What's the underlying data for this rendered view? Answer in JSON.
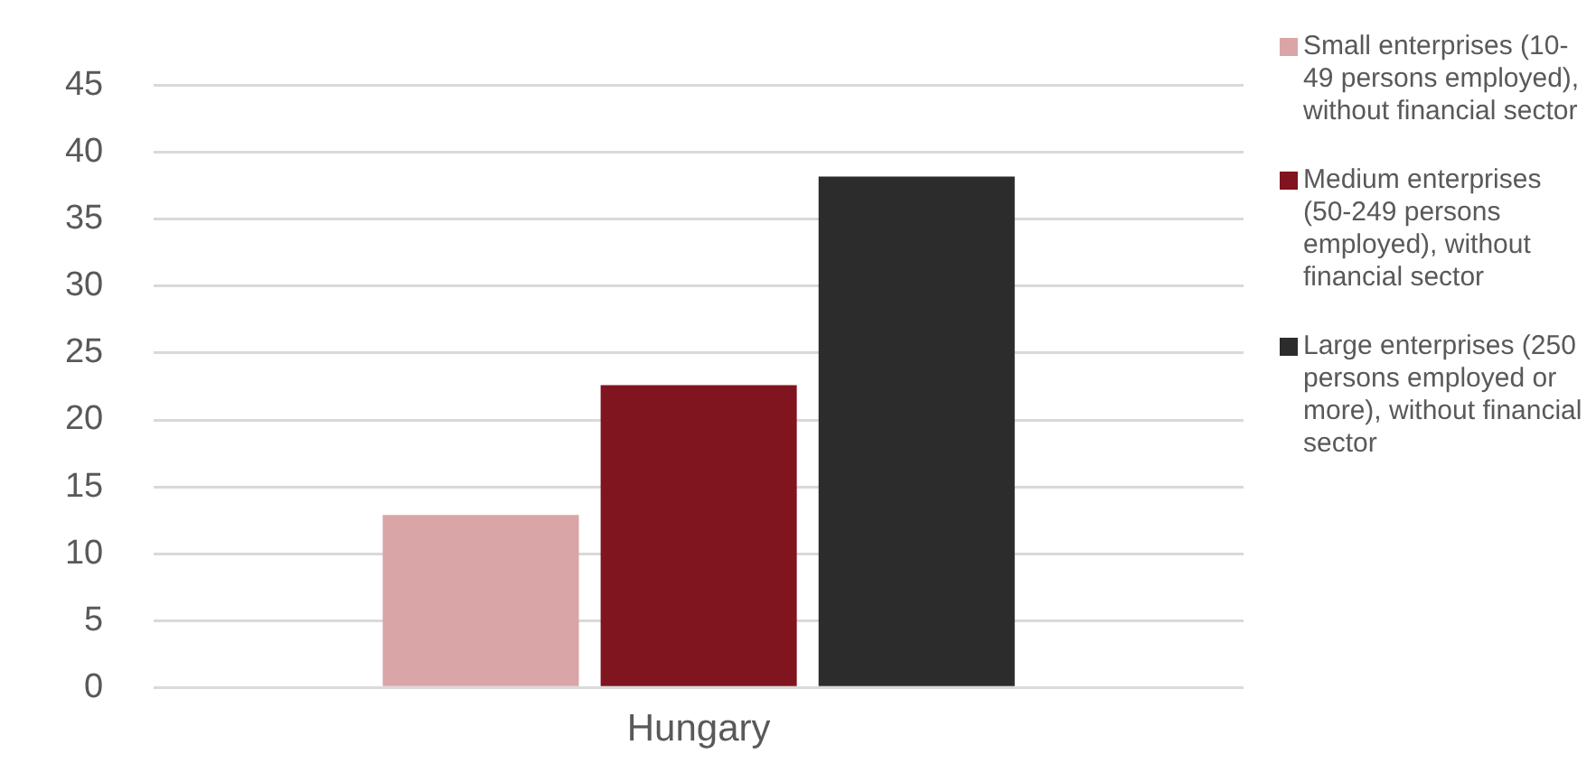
{
  "chart_data": {
    "type": "bar",
    "categories": [
      "Hungary"
    ],
    "series": [
      {
        "name": "Small enterprises (10-49 persons employed), without financial sector",
        "color": "#d9a5a6",
        "values": [
          12.9
        ]
      },
      {
        "name": "Medium enterprises (50-249 persons employed), without financial sector",
        "color": "#80141f",
        "values": [
          22.6
        ]
      },
      {
        "name": "Large enterprises (250 persons employed or more), without financial sector",
        "color": "#2c2c2c",
        "values": [
          38.2
        ]
      }
    ],
    "ylim": [
      0,
      45
    ],
    "yticks": [
      0,
      5,
      10,
      15,
      20,
      25,
      30,
      35,
      40,
      45
    ],
    "grid": "y",
    "legend": "right"
  }
}
